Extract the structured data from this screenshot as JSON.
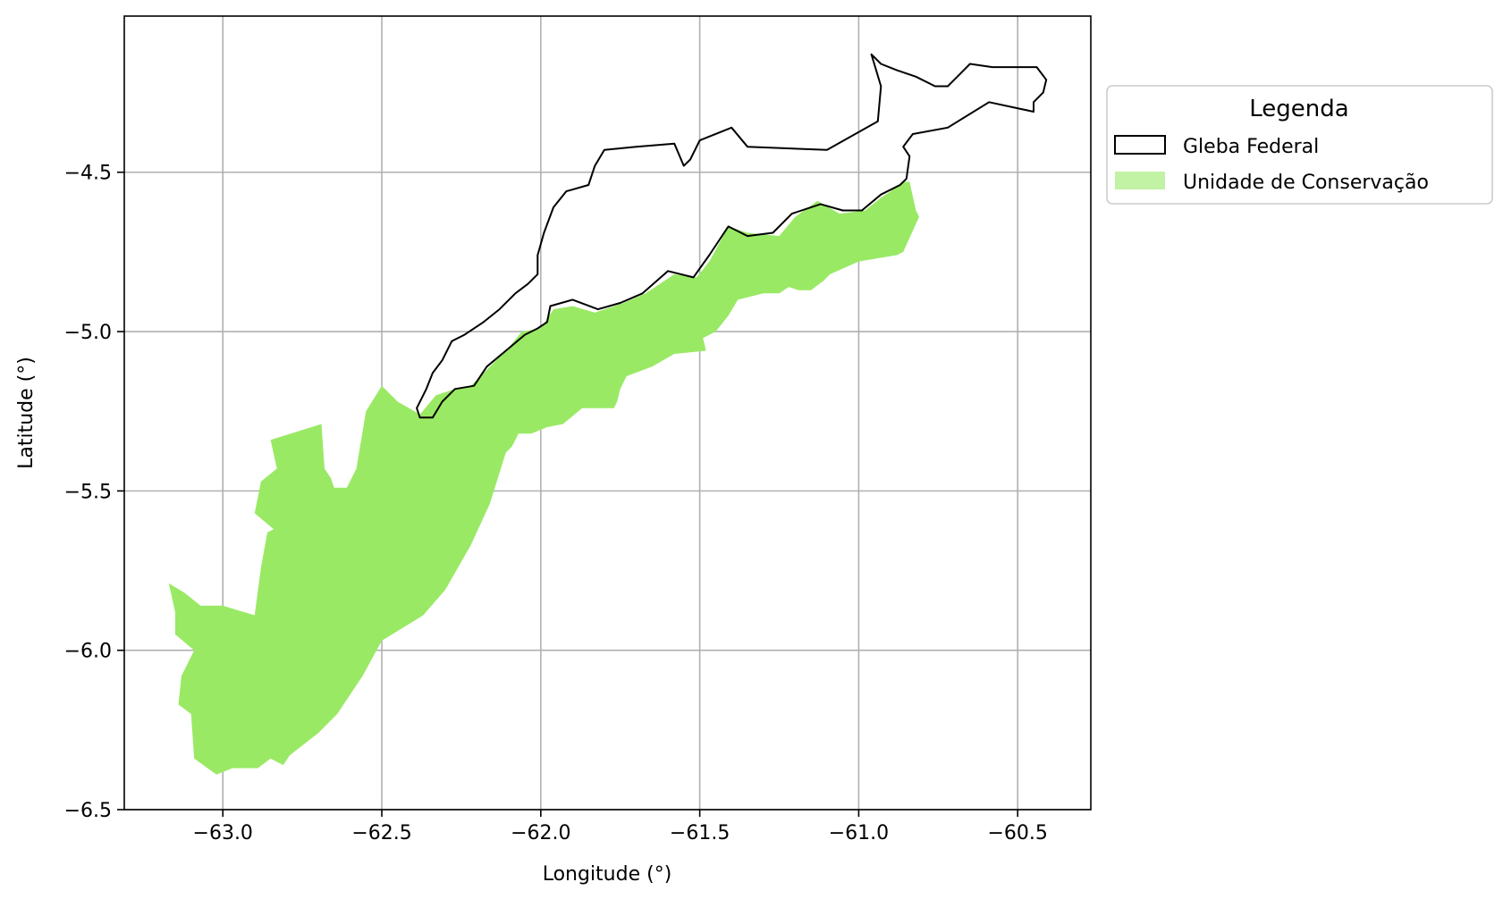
{
  "chart_data": {
    "type": "map",
    "xlabel": "Longitude (°)",
    "ylabel": "Latitude (°)",
    "xlim": [
      -63.31,
      -60.27
    ],
    "ylim": [
      -6.5,
      -4.01
    ],
    "xticks": [
      -63.0,
      -62.5,
      -62.0,
      -61.5,
      -61.0,
      -60.5
    ],
    "yticks": [
      -4.5,
      -5.0,
      -5.5,
      -6.0,
      -6.5
    ],
    "xtick_labels": [
      "−63.0",
      "−62.5",
      "−62.0",
      "−61.5",
      "−61.0",
      "−60.5"
    ],
    "ytick_labels": [
      "−4.5",
      "−5.0",
      "−5.5",
      "−6.0",
      "−6.5"
    ],
    "grid": true,
    "legend": {
      "title": "Legenda",
      "placement": "outside right, top",
      "entries": [
        {
          "label": "Gleba Federal",
          "style": "outline",
          "edge_color": "#000000",
          "fill": "none"
        },
        {
          "label": "Unidade de Conservação",
          "style": "filled",
          "fill": "#9ae965",
          "legend_fill": "#c2f2a3"
        }
      ]
    },
    "series": [
      {
        "name": "Unidade de Conservação",
        "geometry": "polygon",
        "fill": "#9ae965",
        "coordinates": [
          [
            -63.17,
            -5.79
          ],
          [
            -63.12,
            -5.82
          ],
          [
            -63.07,
            -5.86
          ],
          [
            -63.0,
            -5.86
          ],
          [
            -62.9,
            -5.89
          ],
          [
            -62.88,
            -5.74
          ],
          [
            -62.86,
            -5.63
          ],
          [
            -62.84,
            -5.62
          ],
          [
            -62.9,
            -5.57
          ],
          [
            -62.88,
            -5.47
          ],
          [
            -62.83,
            -5.43
          ],
          [
            -62.85,
            -5.34
          ],
          [
            -62.69,
            -5.29
          ],
          [
            -62.68,
            -5.43
          ],
          [
            -62.66,
            -5.46
          ],
          [
            -62.65,
            -5.49
          ],
          [
            -62.61,
            -5.49
          ],
          [
            -62.58,
            -5.43
          ],
          [
            -62.55,
            -5.25
          ],
          [
            -62.5,
            -5.17
          ],
          [
            -62.45,
            -5.22
          ],
          [
            -62.38,
            -5.26
          ],
          [
            -62.33,
            -5.2
          ],
          [
            -62.27,
            -5.18
          ],
          [
            -62.22,
            -5.17
          ],
          [
            -62.16,
            -5.11
          ],
          [
            -62.1,
            -5.05
          ],
          [
            -62.06,
            -5.0
          ],
          [
            -62.0,
            -4.99
          ],
          [
            -61.96,
            -4.93
          ],
          [
            -61.9,
            -4.92
          ],
          [
            -61.83,
            -4.94
          ],
          [
            -61.74,
            -4.91
          ],
          [
            -61.67,
            -4.88
          ],
          [
            -61.58,
            -4.82
          ],
          [
            -61.51,
            -4.83
          ],
          [
            -61.47,
            -4.78
          ],
          [
            -61.41,
            -4.67
          ],
          [
            -61.35,
            -4.69
          ],
          [
            -61.25,
            -4.7
          ],
          [
            -61.2,
            -4.64
          ],
          [
            -61.13,
            -4.59
          ],
          [
            -61.06,
            -4.63
          ],
          [
            -60.98,
            -4.62
          ],
          [
            -60.93,
            -4.58
          ],
          [
            -60.9,
            -4.56
          ],
          [
            -60.86,
            -4.53
          ],
          [
            -60.84,
            -4.53
          ],
          [
            -60.82,
            -4.62
          ],
          [
            -60.81,
            -4.64
          ],
          [
            -60.86,
            -4.75
          ],
          [
            -60.88,
            -4.76
          ],
          [
            -60.94,
            -4.77
          ],
          [
            -61.0,
            -4.78
          ],
          [
            -61.09,
            -4.82
          ],
          [
            -61.11,
            -4.84
          ],
          [
            -61.15,
            -4.87
          ],
          [
            -61.19,
            -4.87
          ],
          [
            -61.22,
            -4.86
          ],
          [
            -61.25,
            -4.88
          ],
          [
            -61.3,
            -4.88
          ],
          [
            -61.38,
            -4.9
          ],
          [
            -61.41,
            -4.95
          ],
          [
            -61.45,
            -5.0
          ],
          [
            -61.49,
            -5.02
          ],
          [
            -61.48,
            -5.06
          ],
          [
            -61.58,
            -5.07
          ],
          [
            -61.65,
            -5.11
          ],
          [
            -61.73,
            -5.14
          ],
          [
            -61.75,
            -5.18
          ],
          [
            -61.76,
            -5.22
          ],
          [
            -61.77,
            -5.24
          ],
          [
            -61.79,
            -5.24
          ],
          [
            -61.83,
            -5.24
          ],
          [
            -61.87,
            -5.24
          ],
          [
            -61.93,
            -5.29
          ],
          [
            -61.98,
            -5.3
          ],
          [
            -62.03,
            -5.32
          ],
          [
            -62.07,
            -5.32
          ],
          [
            -62.09,
            -5.36
          ],
          [
            -62.11,
            -5.38
          ],
          [
            -62.16,
            -5.54
          ],
          [
            -62.22,
            -5.67
          ],
          [
            -62.3,
            -5.81
          ],
          [
            -62.37,
            -5.89
          ],
          [
            -62.5,
            -5.97
          ],
          [
            -62.56,
            -6.08
          ],
          [
            -62.64,
            -6.2
          ],
          [
            -62.7,
            -6.26
          ],
          [
            -62.79,
            -6.33
          ],
          [
            -62.81,
            -6.36
          ],
          [
            -62.85,
            -6.34
          ],
          [
            -62.89,
            -6.37
          ],
          [
            -62.97,
            -6.37
          ],
          [
            -63.02,
            -6.39
          ],
          [
            -63.09,
            -6.34
          ],
          [
            -63.1,
            -6.2
          ],
          [
            -63.14,
            -6.17
          ],
          [
            -63.13,
            -6.08
          ],
          [
            -63.09,
            -6.0
          ],
          [
            -63.15,
            -5.95
          ],
          [
            -63.15,
            -5.88
          ]
        ]
      },
      {
        "name": "Gleba Federal",
        "geometry": "polygon-outline",
        "stroke": "#000000",
        "coordinates": [
          [
            -62.38,
            -5.27
          ],
          [
            -62.34,
            -5.27
          ],
          [
            -62.31,
            -5.22
          ],
          [
            -62.27,
            -5.18
          ],
          [
            -62.21,
            -5.17
          ],
          [
            -62.17,
            -5.11
          ],
          [
            -62.11,
            -5.06
          ],
          [
            -62.05,
            -5.01
          ],
          [
            -62.01,
            -4.99
          ],
          [
            -61.98,
            -4.97
          ],
          [
            -61.97,
            -4.92
          ],
          [
            -61.9,
            -4.9
          ],
          [
            -61.82,
            -4.93
          ],
          [
            -61.75,
            -4.91
          ],
          [
            -61.68,
            -4.88
          ],
          [
            -61.6,
            -4.81
          ],
          [
            -61.52,
            -4.83
          ],
          [
            -61.47,
            -4.76
          ],
          [
            -61.41,
            -4.67
          ],
          [
            -61.35,
            -4.7
          ],
          [
            -61.27,
            -4.69
          ],
          [
            -61.21,
            -4.63
          ],
          [
            -61.12,
            -4.6
          ],
          [
            -61.05,
            -4.62
          ],
          [
            -60.99,
            -4.62
          ],
          [
            -60.93,
            -4.57
          ],
          [
            -60.87,
            -4.54
          ],
          [
            -60.85,
            -4.52
          ],
          [
            -60.84,
            -4.45
          ],
          [
            -60.86,
            -4.42
          ],
          [
            -60.83,
            -4.38
          ],
          [
            -60.72,
            -4.36
          ],
          [
            -60.59,
            -4.28
          ],
          [
            -60.45,
            -4.31
          ],
          [
            -60.45,
            -4.28
          ],
          [
            -60.42,
            -4.25
          ],
          [
            -60.41,
            -4.21
          ],
          [
            -60.44,
            -4.17
          ],
          [
            -60.5,
            -4.17
          ],
          [
            -60.58,
            -4.17
          ],
          [
            -60.65,
            -4.16
          ],
          [
            -60.69,
            -4.2
          ],
          [
            -60.72,
            -4.23
          ],
          [
            -60.76,
            -4.23
          ],
          [
            -60.82,
            -4.2
          ],
          [
            -60.88,
            -4.18
          ],
          [
            -60.93,
            -4.16
          ],
          [
            -60.96,
            -4.13
          ],
          [
            -60.93,
            -4.23
          ],
          [
            -60.94,
            -4.34
          ],
          [
            -61.1,
            -4.43
          ],
          [
            -61.35,
            -4.42
          ],
          [
            -61.4,
            -4.36
          ],
          [
            -61.5,
            -4.4
          ],
          [
            -61.53,
            -4.46
          ],
          [
            -61.55,
            -4.48
          ],
          [
            -61.58,
            -4.41
          ],
          [
            -61.7,
            -4.42
          ],
          [
            -61.8,
            -4.43
          ],
          [
            -61.83,
            -4.48
          ],
          [
            -61.85,
            -4.54
          ],
          [
            -61.92,
            -4.56
          ],
          [
            -61.96,
            -4.61
          ],
          [
            -61.99,
            -4.69
          ],
          [
            -62.01,
            -4.76
          ],
          [
            -62.01,
            -4.82
          ],
          [
            -62.04,
            -4.85
          ],
          [
            -62.08,
            -4.88
          ],
          [
            -62.13,
            -4.93
          ],
          [
            -62.18,
            -4.97
          ],
          [
            -62.24,
            -5.01
          ],
          [
            -62.28,
            -5.03
          ],
          [
            -62.31,
            -5.09
          ],
          [
            -62.34,
            -5.13
          ],
          [
            -62.36,
            -5.18
          ],
          [
            -62.39,
            -5.24
          ]
        ]
      }
    ]
  }
}
